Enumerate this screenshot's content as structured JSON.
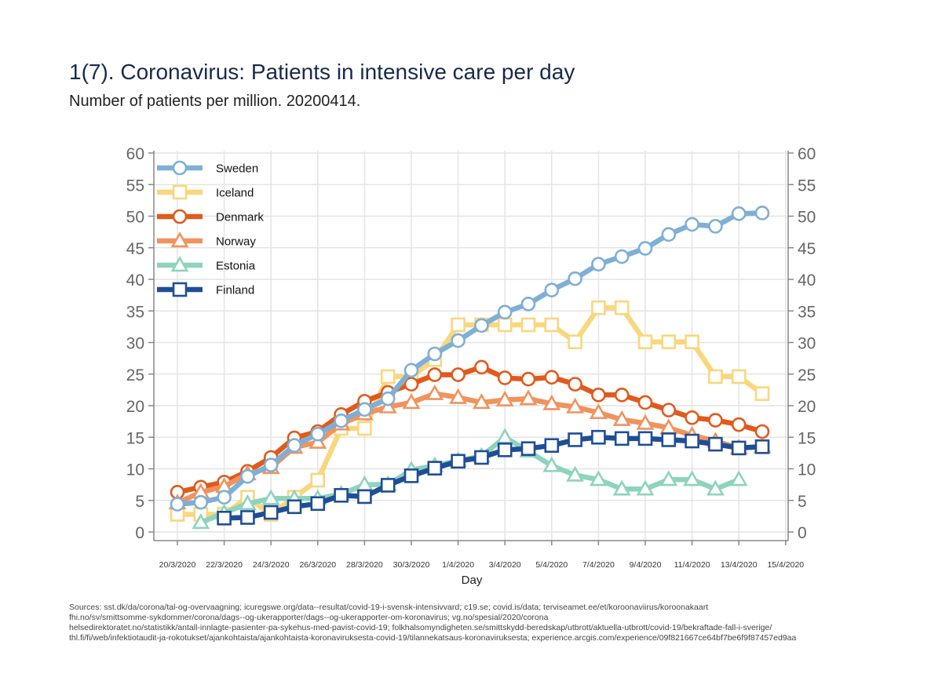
{
  "header": {
    "title": "1(7). Coronavirus: Patients in intensive care per day",
    "subtitle": "Number of patients per million. 20200414."
  },
  "sources": [
    "Sources: sst.dk/da/corona/tal-og-overvaagning; icuregswe.org/data--resultat/covid-19-i-svensk-intensivvard; c19.se; covid.is/data;  terviseamet.ee/et/koroonaviirus/koroonakaart",
    "fhi.no/sv/smittsomme-sykdommer/corona/dags--og-ukerapporter/dags--og-ukerapporter-om-koronavirus; vg.no/spesial/2020/corona",
    "helsedirektoratet.no/statistikk/antall-innlagte-pasienter-pa-sykehus-med-pavist-covid-19; folkhalsomyndigheten.se/smittskydd-beredskap/utbrott/aktuella-utbrott/covid-19/bekraftade-fall-i-sverige/",
    "thl.fi/fi/web/infektiotaudit-ja-rokotukset/ajankohtaista/ajankohtaista-koronaviruksesta-covid-19/tilannekatsaus-koronaviruksesta; experience.arcgis.com/experience/09f821667ce64bf7be6f9f87457ed9aa"
  ],
  "chart_data": {
    "type": "line",
    "xlabel": "Day",
    "ylabel": "",
    "ylim": [
      0,
      60
    ],
    "yticks": [
      0,
      5,
      10,
      15,
      20,
      25,
      30,
      35,
      40,
      45,
      50,
      55,
      60
    ],
    "xticks": [
      "20/3/2020",
      "22/3/2020",
      "24/3/2020",
      "26/3/2020",
      "28/3/2020",
      "30/3/2020",
      "1/4/2020",
      "3/4/2020",
      "5/4/2020",
      "7/4/2020",
      "9/4/2020",
      "11/4/2020",
      "13/4/2020",
      "15/4/2020"
    ],
    "x": [
      "20/3/2020",
      "21/3/2020",
      "22/3/2020",
      "23/3/2020",
      "24/3/2020",
      "25/3/2020",
      "26/3/2020",
      "27/3/2020",
      "28/3/2020",
      "29/3/2020",
      "30/3/2020",
      "31/3/2020",
      "1/4/2020",
      "2/4/2020",
      "3/4/2020",
      "4/4/2020",
      "5/4/2020",
      "6/4/2020",
      "7/4/2020",
      "8/4/2020",
      "9/4/2020",
      "10/4/2020",
      "11/4/2020",
      "12/4/2020",
      "13/4/2020",
      "14/4/2020"
    ],
    "grid": true,
    "legend_position": "top-left",
    "series": [
      {
        "name": "Iceland",
        "color": "#f9d77e",
        "marker": "square",
        "values": [
          2.8,
          2.8,
          2.8,
          5.5,
          2.8,
          5.5,
          8.2,
          16.4,
          16.4,
          24.6,
          24.6,
          27.3,
          32.8,
          32.8,
          32.8,
          32.8,
          32.8,
          30.1,
          35.5,
          35.5,
          30.1,
          30.1,
          30.1,
          24.6,
          24.6,
          21.9
        ]
      },
      {
        "name": "Denmark",
        "color": "#e05a1c",
        "marker": "circle",
        "values": [
          6.3,
          7.1,
          7.9,
          9.6,
          11.8,
          14.9,
          15.9,
          18.6,
          20.7,
          22.1,
          23.4,
          24.9,
          24.9,
          26.1,
          24.4,
          24.2,
          24.5,
          23.4,
          21.7,
          21.7,
          20.5,
          19.3,
          18.1,
          17.7,
          17.0,
          15.9
        ]
      },
      {
        "name": "Norway",
        "color": "#f0935d",
        "marker": "triangle",
        "values": [
          4.6,
          6.3,
          7.2,
          9.2,
          10.2,
          13.4,
          14.2,
          17.1,
          18.7,
          19.8,
          20.5,
          21.9,
          21.3,
          20.5,
          20.9,
          21.1,
          20.3,
          19.8,
          18.9,
          17.8,
          17.2,
          16.5,
          15.3,
          14.4,
          13.3,
          13.5
        ]
      },
      {
        "name": "Estonia",
        "color": "#8ed3bd",
        "marker": "triangle",
        "values": [
          null,
          1.5,
          3.0,
          4.5,
          5.3,
          5.3,
          5.3,
          6.0,
          7.5,
          7.5,
          9.8,
          10.5,
          11.3,
          12.0,
          15.0,
          12.8,
          10.5,
          9.0,
          8.3,
          6.8,
          6.8,
          8.3,
          8.3,
          6.8,
          8.3,
          null
        ]
      },
      {
        "name": "Sweden",
        "color": "#7eafd6",
        "marker": "circle",
        "values": [
          4.4,
          4.7,
          5.5,
          8.8,
          10.6,
          13.7,
          15.5,
          17.6,
          19.4,
          21.1,
          25.6,
          28.2,
          30.3,
          32.7,
          34.8,
          36.1,
          38.3,
          40.1,
          42.4,
          43.6,
          44.9,
          47.1,
          48.7,
          48.4,
          50.4,
          50.5
        ]
      },
      {
        "name": "Finland",
        "color": "#1f4e96",
        "marker": "square",
        "values": [
          null,
          null,
          2.2,
          2.3,
          3.1,
          4.0,
          4.5,
          5.8,
          5.6,
          7.4,
          8.9,
          10.1,
          11.2,
          11.8,
          13.0,
          13.2,
          13.7,
          14.6,
          15.0,
          14.8,
          14.8,
          14.6,
          14.4,
          13.9,
          13.3,
          13.5
        ]
      }
    ],
    "legend_order": [
      "Sweden",
      "Iceland",
      "Denmark",
      "Norway",
      "Estonia",
      "Finland"
    ]
  }
}
